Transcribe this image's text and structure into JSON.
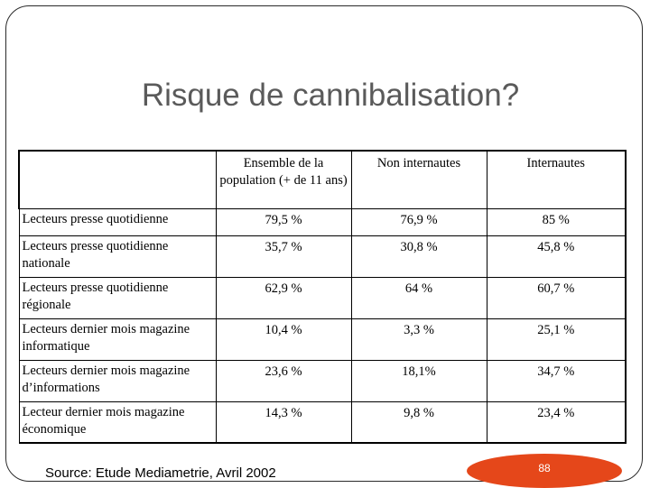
{
  "slide": {
    "title": "Risque de cannibalisation?",
    "source": "Source: Etude Mediametrie, Avril 2002",
    "page_number": "88",
    "accent_color": "#e5471a"
  },
  "table": {
    "headers": [
      "",
      "Ensemble de la population (+ de 11 ans)",
      "Non internautes",
      "Internautes"
    ],
    "rows": [
      {
        "label": "Lecteurs presse quotidienne",
        "values": [
          "79,5 %",
          "76,9 %",
          "85 %"
        ]
      },
      {
        "label": "Lecteurs presse quotidienne nationale",
        "values": [
          "35,7 %",
          "30,8 %",
          "45,8 %"
        ]
      },
      {
        "label": "Lecteurs presse quotidienne régionale",
        "values": [
          "62,9 %",
          "64 %",
          "60,7 %"
        ]
      },
      {
        "label": "Lecteurs dernier mois magazine informatique",
        "values": [
          "10,4 %",
          "3,3 %",
          "25,1 %"
        ]
      },
      {
        "label": "Lecteurs dernier mois magazine d’informations",
        "values": [
          "23,6 %",
          "18,1%",
          "34,7 %"
        ]
      },
      {
        "label": "Lecteur dernier mois magazine économique",
        "values": [
          "14,3 %",
          "9,8 %",
          "23,4 %"
        ]
      }
    ]
  }
}
